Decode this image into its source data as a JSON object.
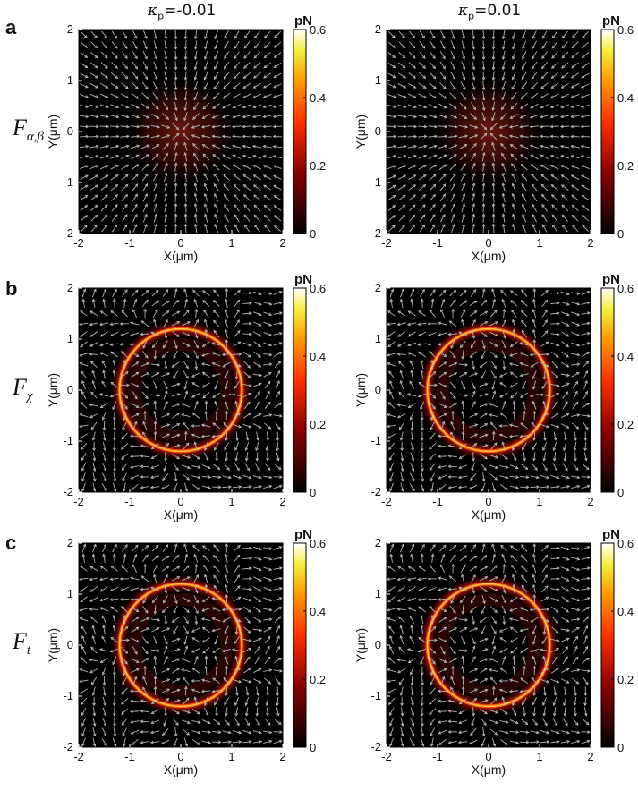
{
  "figure": {
    "column_titles": [
      {
        "symbol": "κ",
        "subscript": "p",
        "rest": "=-0.01"
      },
      {
        "symbol": "κ",
        "subscript": "p",
        "rest": "=0.01"
      }
    ],
    "rows": [
      {
        "letter": "a",
        "label": "F",
        "label_sub": "α,β"
      },
      {
        "letter": "b",
        "label": "F",
        "label_sub": "χ"
      },
      {
        "letter": "c",
        "label": "F",
        "label_sub": "t"
      }
    ]
  },
  "chart_data": [
    {
      "type": "heatmap",
      "panel": "a",
      "row": 0,
      "col": 0,
      "kappa_p": -0.01,
      "pattern": "center",
      "field": "radial-inward",
      "xlabel": "X(μm)",
      "ylabel": "Y(μm)",
      "xlim": [
        -2,
        2
      ],
      "ylim": [
        -2,
        2
      ],
      "xticks": [
        -2,
        -1,
        0,
        1,
        2
      ],
      "yticks": [
        -2,
        -1,
        0,
        1,
        2
      ],
      "colorbar": {
        "label": "pN",
        "range": [
          0,
          0.6
        ],
        "ticks": [
          0,
          0.2,
          0.4,
          0.6
        ],
        "tick_labels": [
          "0",
          "0.2",
          "0.4",
          "0.6"
        ],
        "colormap": "hot"
      },
      "peak_value": 0.15
    },
    {
      "type": "heatmap",
      "panel": "a",
      "row": 0,
      "col": 1,
      "kappa_p": 0.01,
      "pattern": "center",
      "field": "radial-inward",
      "xlabel": "X(μm)",
      "ylabel": "Y(μm)",
      "xlim": [
        -2,
        2
      ],
      "ylim": [
        -2,
        2
      ],
      "xticks": [
        -2,
        -1,
        0,
        1,
        2
      ],
      "yticks": [
        -2,
        -1,
        0,
        1,
        2
      ],
      "colorbar": {
        "label": "pN",
        "range": [
          0,
          0.6
        ],
        "ticks": [
          0,
          0.2,
          0.4,
          0.6
        ],
        "tick_labels": [
          "0",
          "0.2",
          "0.4",
          "0.6"
        ],
        "colormap": "hot"
      },
      "peak_value": 0.15
    },
    {
      "type": "heatmap",
      "panel": "b",
      "row": 1,
      "col": 0,
      "kappa_p": -0.01,
      "pattern": "ring",
      "ring_radius_um": 1.2,
      "field": "swirl",
      "xlabel": "X(μm)",
      "ylabel": "Y(μm)",
      "xlim": [
        -2,
        2
      ],
      "ylim": [
        -2,
        2
      ],
      "xticks": [
        -2,
        -1,
        0,
        1,
        2
      ],
      "yticks": [
        -2,
        -1,
        0,
        1,
        2
      ],
      "colorbar": {
        "label": "pN",
        "range": [
          0,
          0.6
        ],
        "ticks": [
          0,
          0.2,
          0.4,
          0.6
        ],
        "tick_labels": [
          "0",
          "0.2",
          "0.4",
          "0.6"
        ],
        "colormap": "hot"
      },
      "peak_value": 0.5
    },
    {
      "type": "heatmap",
      "panel": "b",
      "row": 1,
      "col": 1,
      "kappa_p": 0.01,
      "pattern": "ring",
      "ring_radius_um": 1.2,
      "field": "swirl",
      "xlabel": "X(μm)",
      "ylabel": "Y(μm)",
      "xlim": [
        -2,
        2
      ],
      "ylim": [
        -2,
        2
      ],
      "xticks": [
        -2,
        -1,
        0,
        1,
        2
      ],
      "yticks": [
        -2,
        -1,
        0,
        1,
        2
      ],
      "colorbar": {
        "label": "pN",
        "range": [
          0,
          0.6
        ],
        "ticks": [
          0,
          0.2,
          0.4,
          0.6
        ],
        "tick_labels": [
          "0",
          "0.2",
          "0.4",
          "0.6"
        ],
        "colormap": "hot"
      },
      "peak_value": 0.5
    },
    {
      "type": "heatmap",
      "panel": "c",
      "row": 2,
      "col": 0,
      "kappa_p": -0.01,
      "pattern": "ring",
      "ring_radius_um": 1.2,
      "field": "swirl",
      "xlabel": "X(μm)",
      "ylabel": "Y(μm)",
      "xlim": [
        -2,
        2
      ],
      "ylim": [
        -2,
        2
      ],
      "xticks": [
        -2,
        -1,
        0,
        1,
        2
      ],
      "yticks": [
        -2,
        -1,
        0,
        1,
        2
      ],
      "colorbar": {
        "label": "pN",
        "range": [
          0,
          0.6
        ],
        "ticks": [
          0,
          0.2,
          0.4,
          0.6
        ],
        "tick_labels": [
          "0",
          "0.2",
          "0.4",
          "0.6"
        ],
        "colormap": "hot"
      },
      "peak_value": 0.5
    },
    {
      "type": "heatmap",
      "panel": "c",
      "row": 2,
      "col": 1,
      "kappa_p": 0.01,
      "pattern": "ring",
      "ring_radius_um": 1.2,
      "field": "swirl",
      "xlabel": "X(μm)",
      "ylabel": "Y(μm)",
      "xlim": [
        -2,
        2
      ],
      "ylim": [
        -2,
        2
      ],
      "xticks": [
        -2,
        -1,
        0,
        1,
        2
      ],
      "yticks": [
        -2,
        -1,
        0,
        1,
        2
      ],
      "colorbar": {
        "label": "pN",
        "range": [
          0,
          0.6
        ],
        "ticks": [
          0,
          0.2,
          0.4,
          0.6
        ],
        "tick_labels": [
          "0",
          "0.2",
          "0.4",
          "0.6"
        ],
        "colormap": "hot"
      },
      "peak_value": 0.5
    }
  ],
  "colors": {
    "background": "#000000",
    "arrows": "#b4b4b4"
  }
}
